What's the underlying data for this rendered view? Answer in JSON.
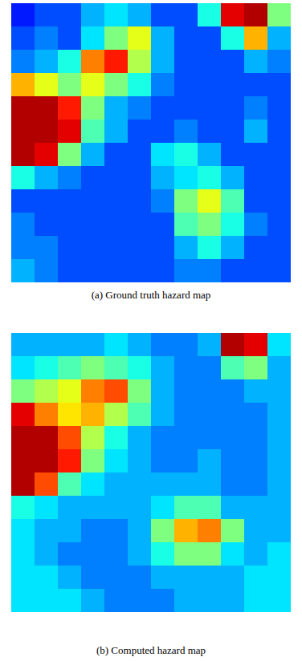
{
  "chart_data": [
    {
      "type": "heatmap",
      "caption": "(a) Ground truth hazard map",
      "tick_labels": false,
      "zlim": [
        0,
        1
      ],
      "cells": [
        [
          0.15,
          0.2,
          0.2,
          0.3,
          0.35,
          0.3,
          0.2,
          0.2,
          0.4,
          0.9,
          0.95,
          0.5
        ],
        [
          0.2,
          0.25,
          0.2,
          0.35,
          0.5,
          0.6,
          0.3,
          0.2,
          0.2,
          0.4,
          0.7,
          0.3
        ],
        [
          0.25,
          0.3,
          0.4,
          0.75,
          0.85,
          0.55,
          0.3,
          0.2,
          0.2,
          0.2,
          0.3,
          0.25
        ],
        [
          0.7,
          0.6,
          0.5,
          0.6,
          0.5,
          0.4,
          0.25,
          0.2,
          0.2,
          0.2,
          0.2,
          0.2
        ],
        [
          0.95,
          0.95,
          0.85,
          0.5,
          0.3,
          0.25,
          0.2,
          0.2,
          0.2,
          0.2,
          0.25,
          0.2
        ],
        [
          0.95,
          0.95,
          0.9,
          0.45,
          0.3,
          0.2,
          0.2,
          0.25,
          0.2,
          0.2,
          0.3,
          0.2
        ],
        [
          0.95,
          0.9,
          0.5,
          0.3,
          0.2,
          0.2,
          0.35,
          0.4,
          0.3,
          0.2,
          0.2,
          0.2
        ],
        [
          0.4,
          0.3,
          0.25,
          0.2,
          0.2,
          0.2,
          0.3,
          0.35,
          0.4,
          0.3,
          0.2,
          0.2
        ],
        [
          0.2,
          0.2,
          0.2,
          0.2,
          0.2,
          0.2,
          0.25,
          0.5,
          0.6,
          0.45,
          0.2,
          0.2
        ],
        [
          0.25,
          0.2,
          0.2,
          0.2,
          0.2,
          0.2,
          0.2,
          0.45,
          0.5,
          0.4,
          0.25,
          0.2
        ],
        [
          0.25,
          0.25,
          0.2,
          0.2,
          0.2,
          0.2,
          0.2,
          0.3,
          0.4,
          0.3,
          0.2,
          0.2
        ],
        [
          0.3,
          0.25,
          0.2,
          0.2,
          0.2,
          0.2,
          0.2,
          0.25,
          0.25,
          0.2,
          0.2,
          0.2
        ]
      ]
    },
    {
      "type": "heatmap",
      "caption": "(b) Computed hazard map",
      "tick_labels": false,
      "zlim": [
        0,
        1
      ],
      "cells": [
        [
          0.3,
          0.3,
          0.3,
          0.3,
          0.35,
          0.3,
          0.25,
          0.25,
          0.3,
          0.95,
          0.9,
          0.35
        ],
        [
          0.35,
          0.4,
          0.45,
          0.5,
          0.45,
          0.4,
          0.3,
          0.25,
          0.25,
          0.45,
          0.5,
          0.3
        ],
        [
          0.5,
          0.55,
          0.6,
          0.75,
          0.8,
          0.5,
          0.3,
          0.25,
          0.25,
          0.25,
          0.3,
          0.3
        ],
        [
          0.9,
          0.75,
          0.65,
          0.7,
          0.55,
          0.45,
          0.3,
          0.25,
          0.25,
          0.25,
          0.25,
          0.3
        ],
        [
          0.95,
          0.95,
          0.8,
          0.55,
          0.4,
          0.3,
          0.25,
          0.25,
          0.25,
          0.25,
          0.25,
          0.3
        ],
        [
          0.95,
          0.95,
          0.85,
          0.5,
          0.35,
          0.3,
          0.25,
          0.25,
          0.3,
          0.25,
          0.25,
          0.3
        ],
        [
          0.95,
          0.8,
          0.45,
          0.35,
          0.3,
          0.3,
          0.3,
          0.3,
          0.3,
          0.25,
          0.25,
          0.3
        ],
        [
          0.4,
          0.35,
          0.3,
          0.3,
          0.3,
          0.3,
          0.35,
          0.45,
          0.45,
          0.3,
          0.3,
          0.3
        ],
        [
          0.35,
          0.3,
          0.3,
          0.25,
          0.25,
          0.3,
          0.5,
          0.7,
          0.75,
          0.5,
          0.3,
          0.3
        ],
        [
          0.35,
          0.3,
          0.25,
          0.25,
          0.25,
          0.3,
          0.4,
          0.5,
          0.5,
          0.35,
          0.3,
          0.35
        ],
        [
          0.35,
          0.35,
          0.3,
          0.25,
          0.25,
          0.25,
          0.3,
          0.3,
          0.3,
          0.3,
          0.35,
          0.35
        ],
        [
          0.35,
          0.35,
          0.35,
          0.3,
          0.25,
          0.25,
          0.25,
          0.3,
          0.3,
          0.3,
          0.35,
          0.35
        ]
      ]
    }
  ]
}
